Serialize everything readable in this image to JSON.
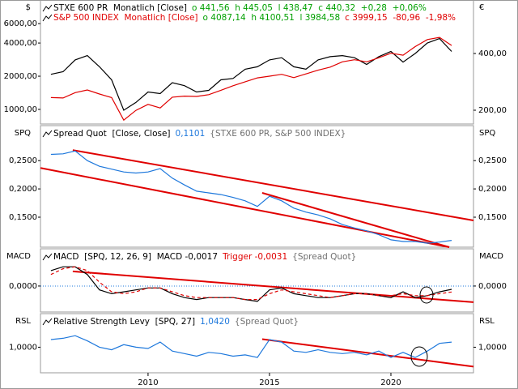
{
  "chart_data": [
    {
      "type": "line",
      "log": true,
      "axis_label": "$",
      "right_axis_label": "€",
      "legend": [
        [
          {
            "text": "STXE 600 PR  Monatlich [Close]",
            "color": "#000000"
          },
          {
            "text": "o 441,56  h 445,05  l 438,47  c 440,32  +0,28  +0,06%",
            "color": "#00a000"
          }
        ],
        [
          {
            "text": "S&P 500 INDEX  Monatlich [Close]",
            "color": "#e00000"
          },
          {
            "text": "o 4087,14  h 4100,51  l 3984,58",
            "color": "#00a000"
          },
          {
            "text": "c 3999,15  -80,96  -1,98%",
            "color": "#e00000"
          }
        ]
      ],
      "xlim": [
        2005.57,
        2023.4
      ],
      "x": [
        2006,
        2006.5,
        2007,
        2007.5,
        2008,
        2008.5,
        2009,
        2009.5,
        2010,
        2010.5,
        2011,
        2011.5,
        2012,
        2012.5,
        2013,
        2013.5,
        2014,
        2014.5,
        2015,
        2015.5,
        2016,
        2016.5,
        2017,
        2017.5,
        2018,
        2018.5,
        2019,
        2019.5,
        2020,
        2020.5,
        2021,
        2021.5,
        2022,
        2022.5
      ],
      "ylim": [
        737,
        9500
      ],
      "yticks": [
        {
          "value": 1000,
          "label": "1000,00"
        },
        {
          "value": 2000,
          "label": "2000,00"
        },
        {
          "value": 4000,
          "label": "4000,00"
        },
        {
          "value": 6000,
          "label": "6000,00"
        }
      ],
      "y2lim": [
        169,
        754
      ],
      "y2ticks": [
        {
          "value": 200,
          "label": "200,00"
        },
        {
          "value": 400,
          "label": "400,00"
        }
      ],
      "series": [
        {
          "name": "STXE 600 PR",
          "color": "#000000",
          "axis": "y2",
          "values": [
            310,
            320,
            370,
            390,
            340,
            290,
            200,
            220,
            250,
            245,
            280,
            270,
            250,
            255,
            290,
            295,
            330,
            340,
            370,
            380,
            340,
            330,
            370,
            385,
            390,
            380,
            350,
            385,
            410,
            360,
            400,
            455,
            480,
            410
          ]
        },
        {
          "name": "S&P 500 INDEX",
          "color": "#e00000",
          "values": [
            1280,
            1270,
            1420,
            1500,
            1380,
            1280,
            800,
            980,
            1110,
            1030,
            1290,
            1320,
            1310,
            1360,
            1490,
            1640,
            1780,
            1930,
            2000,
            2080,
            1940,
            2100,
            2270,
            2420,
            2700,
            2820,
            2700,
            2940,
            3230,
            3100,
            3710,
            4300,
            4500,
            3800
          ]
        }
      ]
    },
    {
      "type": "line",
      "axis_label": "SPQ",
      "legend": [
        [
          {
            "text": "Spread Quot  [Close, Close]",
            "color": "#000000"
          },
          {
            "text": "0,1101",
            "color": "#1e78dc"
          },
          {
            "text": "{STXE 600 PR, S&P 500 INDEX}",
            "color": "#707070"
          }
        ]
      ],
      "xlim": [
        2005.57,
        2023.4
      ],
      "x": [
        2006,
        2006.5,
        2007,
        2007.5,
        2008,
        2008.5,
        2009,
        2009.5,
        2010,
        2010.5,
        2011,
        2011.5,
        2012,
        2012.5,
        2013,
        2013.5,
        2014,
        2014.5,
        2015,
        2015.5,
        2016,
        2016.5,
        2017,
        2017.5,
        2018,
        2018.5,
        2019,
        2019.5,
        2020,
        2020.5,
        2021,
        2021.5,
        2022,
        2022.5
      ],
      "ylim": [
        0.097,
        0.309
      ],
      "yticks": [
        {
          "value": 0.15,
          "label": "0,1500"
        },
        {
          "value": 0.2,
          "label": "0,2000"
        },
        {
          "value": 0.25,
          "label": "0,2500"
        }
      ],
      "series": [
        {
          "name": "Spread Quot",
          "color": "#1e78dc",
          "values": [
            0.261,
            0.262,
            0.267,
            0.25,
            0.24,
            0.235,
            0.23,
            0.228,
            0.23,
            0.236,
            0.219,
            0.207,
            0.196,
            0.193,
            0.19,
            0.185,
            0.179,
            0.169,
            0.187,
            0.179,
            0.166,
            0.159,
            0.154,
            0.147,
            0.137,
            0.131,
            0.126,
            0.119,
            0.11,
            0.107,
            0.107,
            0.104,
            0.106,
            0.109
          ]
        }
      ],
      "trendlines": [
        {
          "color": "#e00000",
          "x": [
            2006.9,
            2023.4
          ],
          "y": [
            0.2686,
            0.1443
          ]
        },
        {
          "color": "#e00000",
          "x": [
            2005.57,
            2022.4
          ],
          "y": [
            0.237,
            0.097
          ]
        },
        {
          "color": "#e00000",
          "x": [
            2014.7,
            2022.4
          ],
          "y": [
            0.193,
            0.097
          ]
        }
      ]
    },
    {
      "type": "line",
      "axis_label": "MACD",
      "grid": true,
      "legend": [
        [
          {
            "text": "MACD  [SPQ, 12, 26, 9]  MACD -0,0017",
            "color": "#000000"
          },
          {
            "text": "Trigger -0,0031",
            "color": "#e00000"
          },
          {
            "text": "{Spread Quot}",
            "color": "#707070"
          }
        ]
      ],
      "xlim": [
        2005.57,
        2023.4
      ],
      "x": [
        2006,
        2006.5,
        2007,
        2007.5,
        2008,
        2008.5,
        2009,
        2009.5,
        2010,
        2010.5,
        2011,
        2011.5,
        2012,
        2012.5,
        2013,
        2013.5,
        2014,
        2014.5,
        2015,
        2015.5,
        2016,
        2016.5,
        2017,
        2017.5,
        2018,
        2018.5,
        2019,
        2019.5,
        2020,
        2020.5,
        2021,
        2021.5,
        2022,
        2022.5
      ],
      "ylim": [
        -0.0135,
        0.0185
      ],
      "yticks": [
        {
          "value": 0,
          "label": "0,0000"
        }
      ],
      "series": [
        {
          "name": "MACD",
          "color": "#000000",
          "values": [
            0.008,
            0.01,
            0.01,
            0.006,
            -0.002,
            -0.004,
            -0.003,
            -0.002,
            -0.001,
            -0.001,
            -0.004,
            -0.006,
            -0.007,
            -0.006,
            -0.006,
            -0.006,
            -0.007,
            -0.008,
            -0.002,
            -0.001,
            -0.004,
            -0.005,
            -0.006,
            -0.006,
            -0.005,
            -0.004,
            -0.004,
            -0.005,
            -0.006,
            -0.003,
            -0.006,
            -0.005,
            -0.003,
            -0.0017
          ]
        },
        {
          "name": "Trigger",
          "color": "#e00000",
          "dash": true,
          "values": [
            0.006,
            0.009,
            0.01,
            0.008,
            0.002,
            -0.003,
            -0.004,
            -0.003,
            -0.001,
            -0.001,
            -0.003,
            -0.005,
            -0.006,
            -0.006,
            -0.006,
            -0.006,
            -0.007,
            -0.007,
            -0.004,
            -0.002,
            -0.003,
            -0.004,
            -0.005,
            -0.006,
            -0.005,
            -0.004,
            -0.004,
            -0.005,
            -0.005,
            -0.004,
            -0.005,
            -0.005,
            -0.004,
            -0.0031
          ]
        }
      ],
      "trendlines": [
        {
          "color": "#e00000",
          "x": [
            2006.9,
            2023.4
          ],
          "y": [
            0.0076,
            -0.0084
          ]
        }
      ]
    },
    {
      "type": "line",
      "axis_label": "RSL",
      "legend": [
        [
          {
            "text": "Relative Strength Levy  [SPQ, 27]",
            "color": "#000000"
          },
          {
            "text": "1,0420",
            "color": "#1e78dc"
          },
          {
            "text": "{Spread Quot}",
            "color": "#707070"
          }
        ]
      ],
      "xlim": [
        2005.57,
        2023.4
      ],
      "xticks": [
        2010,
        2015,
        2020
      ],
      "x": [
        2006,
        2006.5,
        2007,
        2007.5,
        2008,
        2008.5,
        2009,
        2009.5,
        2010,
        2010.5,
        2011,
        2011.5,
        2012,
        2012.5,
        2013,
        2013.5,
        2014,
        2014.5,
        2015,
        2015.5,
        2016,
        2016.5,
        2017,
        2017.5,
        2018,
        2018.5,
        2019,
        2019.5,
        2020,
        2020.5,
        2021,
        2021.5,
        2022,
        2022.5
      ],
      "ylim": [
        0.8,
        1.25
      ],
      "yticks": [
        {
          "value": 1,
          "label": "1,0000"
        }
      ],
      "series": [
        {
          "name": "Relative Strength Levy",
          "color": "#1e78dc",
          "values": [
            1.06,
            1.07,
            1.09,
            1.05,
            1.0,
            0.98,
            1.02,
            1.0,
            0.99,
            1.04,
            0.97,
            0.95,
            0.93,
            0.96,
            0.95,
            0.93,
            0.94,
            0.92,
            1.06,
            1.04,
            0.97,
            0.96,
            0.98,
            0.96,
            0.95,
            0.96,
            0.94,
            0.97,
            0.92,
            0.96,
            0.92,
            0.97,
            1.03,
            1.04
          ]
        }
      ],
      "trendlines": [
        {
          "color": "#e00000",
          "x": [
            2014.7,
            2023.4
          ],
          "y": [
            1.063,
            0.848
          ]
        }
      ]
    }
  ]
}
